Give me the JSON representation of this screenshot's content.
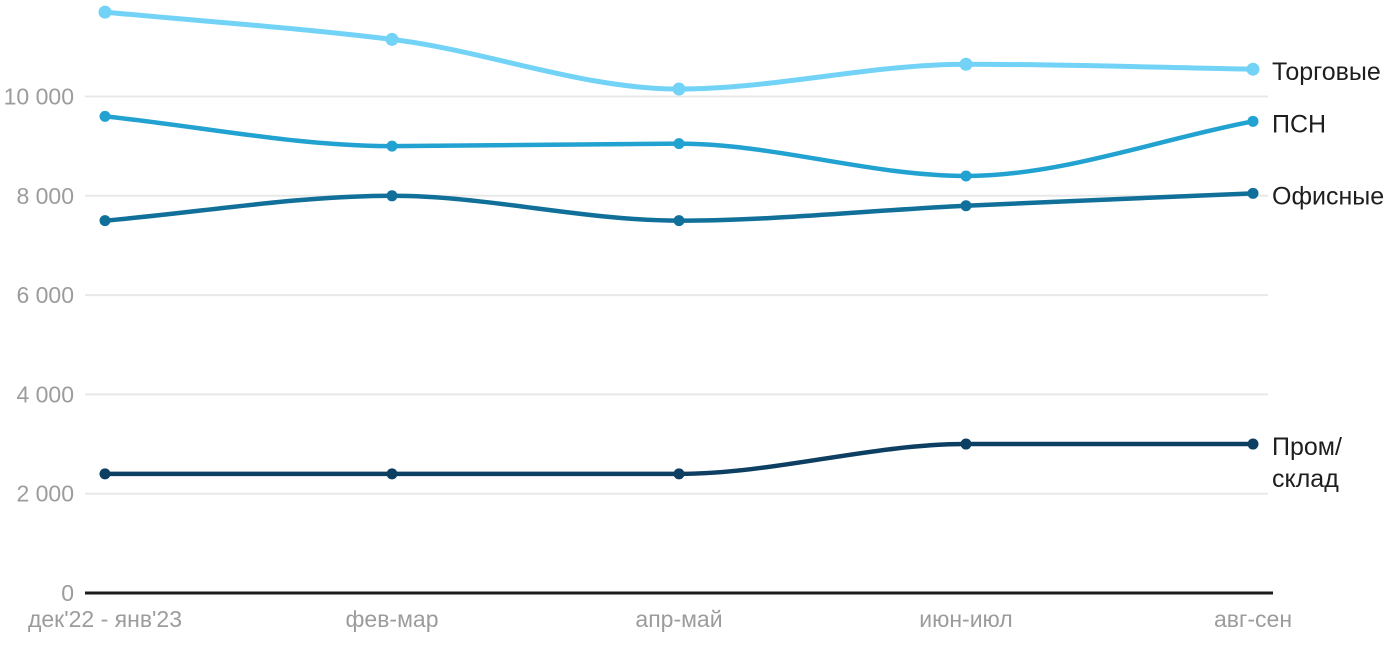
{
  "chart_data": {
    "type": "line",
    "title": "",
    "xlabel": "",
    "ylabel": "",
    "grid": "horizontal",
    "legend_position": "right-end-labels",
    "ylim": [
      0,
      12000
    ],
    "categories": [
      "дек'22 - янв'23",
      "фев-мар",
      "апр-май",
      "июн-июл",
      "авг-сен"
    ],
    "yticks": [
      {
        "value": 0,
        "label": "0"
      },
      {
        "value": 2000,
        "label": "2 000"
      },
      {
        "value": 4000,
        "label": "4 000"
      },
      {
        "value": 6000,
        "label": "6 000"
      },
      {
        "value": 8000,
        "label": "8 000"
      },
      {
        "value": 10000,
        "label": "10 000"
      }
    ],
    "series": [
      {
        "name": "Торговые",
        "label_lines": [
          "Торговые"
        ],
        "color": "#72d3f7",
        "values": [
          11700,
          11150,
          10150,
          10650,
          10550
        ]
      },
      {
        "name": "ПСН",
        "label_lines": [
          "ПСН"
        ],
        "color": "#22a2d0",
        "values": [
          9600,
          9000,
          9050,
          8400,
          9500
        ]
      },
      {
        "name": "Офисные",
        "label_lines": [
          "Офисные"
        ],
        "color": "#11709a",
        "values": [
          7500,
          8000,
          7500,
          7800,
          8050
        ]
      },
      {
        "name": "Пром/склад",
        "label_lines": [
          "Пром/",
          "склад"
        ],
        "color": "#0d3f62",
        "values": [
          2400,
          2400,
          2400,
          3000,
          3000
        ]
      }
    ],
    "colors": {
      "axis_line": "#1c1c1c",
      "gridline": "#e8e8e8",
      "tick_label": "#9c9c9c",
      "series_label": "#1e1e1e",
      "background": "#ffffff"
    }
  }
}
